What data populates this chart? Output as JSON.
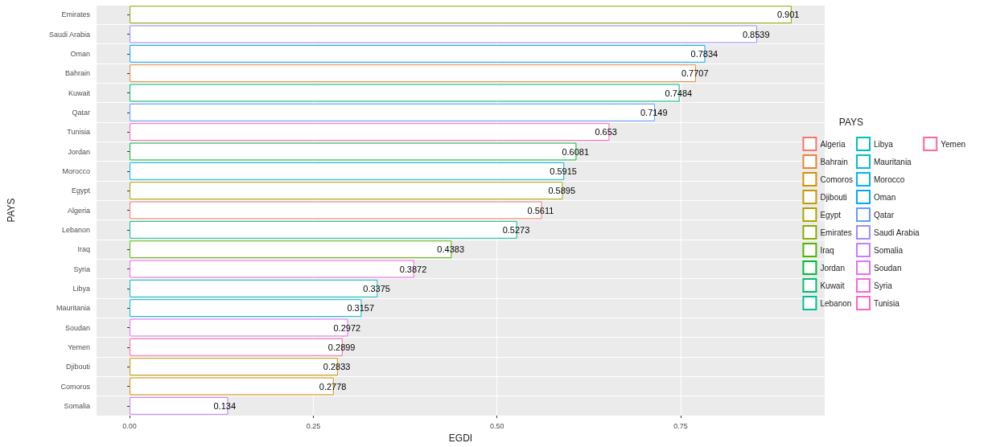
{
  "chart_data": {
    "type": "bar",
    "orientation": "horizontal",
    "xlabel": "EGDI",
    "ylabel": "PAYS",
    "legend_title": "PAYS",
    "legend": "right",
    "grid": true,
    "data_labels": true,
    "categories": [
      "Emirates",
      "Saudi Arabia",
      "Oman",
      "Bahrain",
      "Kuwait",
      "Qatar",
      "Tunisia",
      "Jordan",
      "Morocco",
      "Egypt",
      "Algeria",
      "Lebanon",
      "Iraq",
      "Syria",
      "Libya",
      "Mauritania",
      "Soudan",
      "Yemen",
      "Djibouti",
      "Comoros",
      "Somalia"
    ],
    "xlim": [
      -0.045,
      0.946
    ],
    "xticks": [
      {
        "value": 0,
        "label": "0.00"
      },
      {
        "value": 0.25,
        "label": "0.25"
      },
      {
        "value": 0.5,
        "label": "0.50"
      },
      {
        "value": 0.75,
        "label": "0.75"
      }
    ],
    "series": [
      {
        "name": "Algeria",
        "color": "#F8766D",
        "values": [
          null,
          null,
          null,
          null,
          null,
          null,
          null,
          null,
          null,
          null,
          0.5611,
          null,
          null,
          null,
          null,
          null,
          null,
          null,
          null,
          null,
          null
        ]
      },
      {
        "name": "Bahrain",
        "color": "#EB8335",
        "values": [
          null,
          null,
          null,
          0.7707,
          null,
          null,
          null,
          null,
          null,
          null,
          null,
          null,
          null,
          null,
          null,
          null,
          null,
          null,
          null,
          null,
          null
        ]
      },
      {
        "name": "Comoros",
        "color": "#DA8F00",
        "values": [
          null,
          null,
          null,
          null,
          null,
          null,
          null,
          null,
          null,
          null,
          null,
          null,
          null,
          null,
          null,
          null,
          null,
          null,
          null,
          0.2778,
          null
        ]
      },
      {
        "name": "Djibouti",
        "color": "#C49A00",
        "values": [
          null,
          null,
          null,
          null,
          null,
          null,
          null,
          null,
          null,
          null,
          null,
          null,
          null,
          null,
          null,
          null,
          null,
          null,
          0.2833,
          null,
          null
        ]
      },
      {
        "name": "Egypt",
        "color": "#A9A400",
        "values": [
          null,
          null,
          null,
          null,
          null,
          null,
          null,
          null,
          null,
          0.5895,
          null,
          null,
          null,
          null,
          null,
          null,
          null,
          null,
          null,
          null,
          null
        ]
      },
      {
        "name": "Emirates",
        "color": "#87AC00",
        "values": [
          0.901,
          null,
          null,
          null,
          null,
          null,
          null,
          null,
          null,
          null,
          null,
          null,
          null,
          null,
          null,
          null,
          null,
          null,
          null,
          null,
          null
        ]
      },
      {
        "name": "Iraq",
        "color": "#53B400",
        "values": [
          null,
          null,
          null,
          null,
          null,
          null,
          null,
          null,
          null,
          null,
          null,
          null,
          0.4383,
          null,
          null,
          null,
          null,
          null,
          null,
          null,
          null
        ]
      },
      {
        "name": "Jordan",
        "color": "#00BA38",
        "values": [
          null,
          null,
          null,
          null,
          null,
          null,
          null,
          0.6081,
          null,
          null,
          null,
          null,
          null,
          null,
          null,
          null,
          null,
          null,
          null,
          null,
          null
        ]
      },
      {
        "name": "Kuwait",
        "color": "#00BE6C",
        "values": [
          null,
          null,
          null,
          null,
          0.7484,
          null,
          null,
          null,
          null,
          null,
          null,
          null,
          null,
          null,
          null,
          null,
          null,
          null,
          null,
          null,
          null
        ]
      },
      {
        "name": "Lebanon",
        "color": "#00C097",
        "values": [
          null,
          null,
          null,
          null,
          null,
          null,
          null,
          null,
          null,
          null,
          null,
          0.5273,
          null,
          null,
          null,
          null,
          null,
          null,
          null,
          null,
          null
        ]
      },
      {
        "name": "Libya",
        "color": "#00C0B8",
        "values": [
          null,
          null,
          null,
          null,
          null,
          null,
          null,
          null,
          null,
          null,
          null,
          null,
          null,
          null,
          0.3375,
          null,
          null,
          null,
          null,
          null,
          null
        ]
      },
      {
        "name": "Mauritania",
        "color": "#00BCD6",
        "values": [
          null,
          null,
          null,
          null,
          null,
          null,
          null,
          null,
          null,
          null,
          null,
          null,
          null,
          null,
          null,
          0.3157,
          null,
          null,
          null,
          null,
          null
        ]
      },
      {
        "name": "Morocco",
        "color": "#00B4EF",
        "values": [
          null,
          null,
          null,
          null,
          null,
          null,
          null,
          null,
          0.5915,
          null,
          null,
          null,
          null,
          null,
          null,
          null,
          null,
          null,
          null,
          null,
          null
        ]
      },
      {
        "name": "Oman",
        "color": "#00A9FF",
        "values": [
          null,
          null,
          0.7834,
          null,
          null,
          null,
          null,
          null,
          null,
          null,
          null,
          null,
          null,
          null,
          null,
          null,
          null,
          null,
          null,
          null,
          null
        ]
      },
      {
        "name": "Qatar",
        "color": "#619CFF",
        "values": [
          null,
          null,
          null,
          null,
          null,
          0.7149,
          null,
          null,
          null,
          null,
          null,
          null,
          null,
          null,
          null,
          null,
          null,
          null,
          null,
          null,
          null
        ]
      },
      {
        "name": "Saudi Arabia",
        "color": "#9F8CFF",
        "values": [
          null,
          0.8539,
          null,
          null,
          null,
          null,
          null,
          null,
          null,
          null,
          null,
          null,
          null,
          null,
          null,
          null,
          null,
          null,
          null,
          null,
          null
        ]
      },
      {
        "name": "Somalia",
        "color": "#C77CFF",
        "values": [
          null,
          null,
          null,
          null,
          null,
          null,
          null,
          null,
          null,
          null,
          null,
          null,
          null,
          null,
          null,
          null,
          null,
          null,
          null,
          null,
          0.134
        ]
      },
      {
        "name": "Soudan",
        "color": "#E36EF6",
        "values": [
          null,
          null,
          null,
          null,
          null,
          null,
          null,
          null,
          null,
          null,
          null,
          null,
          null,
          null,
          null,
          null,
          0.2972,
          null,
          null,
          null,
          null
        ]
      },
      {
        "name": "Syria",
        "color": "#F564E3",
        "values": [
          null,
          null,
          null,
          null,
          null,
          null,
          null,
          null,
          null,
          null,
          null,
          null,
          null,
          0.3872,
          null,
          null,
          null,
          null,
          null,
          null,
          null
        ]
      },
      {
        "name": "Tunisia",
        "color": "#FF61C9",
        "values": [
          null,
          null,
          null,
          null,
          null,
          null,
          0.653,
          null,
          null,
          null,
          null,
          null,
          null,
          null,
          null,
          null,
          null,
          null,
          null,
          null,
          null
        ]
      },
      {
        "name": "Yemen",
        "color": "#FF67A4",
        "values": [
          null,
          null,
          null,
          null,
          null,
          null,
          null,
          null,
          null,
          null,
          null,
          null,
          null,
          null,
          null,
          null,
          null,
          0.2899,
          null,
          null,
          null
        ]
      }
    ]
  }
}
